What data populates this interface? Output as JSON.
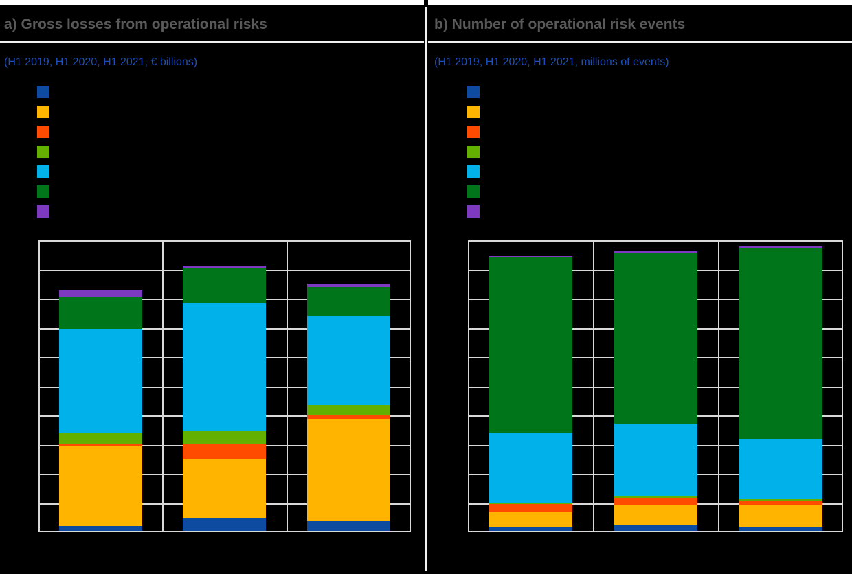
{
  "colors": {
    "background": "#000000",
    "title_gray": "#595959",
    "subtitle_blue": "#1e4ebc",
    "grid_line": "#d9d9d9",
    "rule_white": "#f0f0f0"
  },
  "panels": [
    {
      "title": "a) Gross losses from operational risks",
      "subtitle": "(H1 2019, H1 2020, H1 2021, € billions)"
    },
    {
      "title": "b) Number of operational risk events",
      "subtitle": "(H1 2019, H1 2020, H1 2021, millions of events)"
    }
  ],
  "chart_data": [
    {
      "type": "bar",
      "stacked": true,
      "title": "a) Gross losses from operational risks",
      "units": "€ billions",
      "categories": [
        "H1 2019",
        "H1 2020",
        "H1 2021"
      ],
      "series": [
        {
          "name": "dark-blue",
          "color": "#0d4ba0",
          "values": [
            0.17,
            0.45,
            0.33
          ]
        },
        {
          "name": "amber",
          "color": "#ffb400",
          "values": [
            2.72,
            2.01,
            3.5
          ]
        },
        {
          "name": "orange-red",
          "color": "#ff4b00",
          "values": [
            0.1,
            0.52,
            0.12
          ]
        },
        {
          "name": "green",
          "color": "#64b000",
          "values": [
            0.35,
            0.44,
            0.35
          ]
        },
        {
          "name": "light-blue",
          "color": "#00b1ea",
          "values": [
            3.59,
            4.38,
            3.07
          ]
        },
        {
          "name": "dark-green",
          "color": "#007519",
          "values": [
            1.07,
            1.19,
            0.99
          ]
        },
        {
          "name": "purple",
          "color": "#7d3ac1",
          "values": [
            0.24,
            0.1,
            0.1
          ]
        }
      ],
      "totals": [
        8.24,
        9.09,
        8.46
      ],
      "ylim": [
        0,
        10
      ],
      "gridline_intervals": 10,
      "grid_on": true,
      "legend_position": "top-left",
      "legend_labels_visible": false,
      "axis_tick_labels_visible": false,
      "note": "Axis tick labels and legend/category text are not visible in the image (black on black); values estimated in gridline units, one interval = 1 unit."
    },
    {
      "type": "bar",
      "stacked": true,
      "title": "b) Number of operational risk events",
      "units": "millions of events",
      "categories": [
        "H1 2019",
        "H1 2020",
        "H1 2021"
      ],
      "series": [
        {
          "name": "dark-blue",
          "color": "#0d4ba0",
          "values": [
            0.14,
            0.22,
            0.14
          ]
        },
        {
          "name": "amber",
          "color": "#ffb400",
          "values": [
            0.5,
            0.64,
            0.73
          ]
        },
        {
          "name": "orange-red",
          "color": "#ff4b00",
          "values": [
            0.28,
            0.27,
            0.16
          ]
        },
        {
          "name": "green",
          "color": "#64b000",
          "values": [
            0.05,
            0.05,
            0.05
          ]
        },
        {
          "name": "light-blue",
          "color": "#00b1ea",
          "values": [
            2.39,
            2.49,
            2.05
          ]
        },
        {
          "name": "dark-green",
          "color": "#007519",
          "values": [
            6.0,
            5.87,
            6.56
          ]
        },
        {
          "name": "purple",
          "color": "#7d3ac1",
          "values": [
            0.05,
            0.04,
            0.05
          ]
        }
      ],
      "totals": [
        9.41,
        9.58,
        9.74
      ],
      "ylim": [
        0,
        10
      ],
      "gridline_intervals": 10,
      "grid_on": true,
      "legend_position": "top-left",
      "legend_labels_visible": false,
      "axis_tick_labels_visible": false,
      "note": "Axis tick labels and legend/category text are not visible in the image (black on black); values estimated in gridline units, one interval = 1 unit."
    }
  ]
}
